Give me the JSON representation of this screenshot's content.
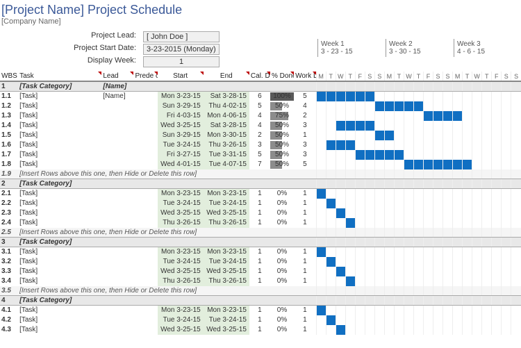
{
  "title": "[Project Name] Project Schedule",
  "subtitle": "[Company Name]",
  "meta": {
    "lead_label": "Project Lead:",
    "lead_value": "[ John Doe ]",
    "start_label": "Project Start Date:",
    "start_value": "3-23-2015 (Monday)",
    "week_label": "Display Week:",
    "week_value": "1"
  },
  "weeks": [
    {
      "label": "Week 1",
      "date": "3 - 23 - 15"
    },
    {
      "label": "Week 2",
      "date": "3 - 30 - 15"
    },
    {
      "label": "Week 3",
      "date": "4 - 6 - 15"
    }
  ],
  "headers": {
    "wbs": "WBS",
    "task": "Task",
    "lead": "Lead",
    "pred": "Prede cessor",
    "start": "Start",
    "end": "End",
    "cal": "Cal. Days",
    "pct": "% Done",
    "work": "Work Days"
  },
  "day_letters": [
    "M",
    "T",
    "W",
    "T",
    "F",
    "S",
    "S",
    "M",
    "T",
    "W",
    "T",
    "F",
    "S",
    "S",
    "M",
    "T",
    "W",
    "T",
    "F",
    "S",
    "S"
  ],
  "hint_text": "[Insert Rows above this one, then Hide or Delete this row]",
  "task_placeholder": "[Task]",
  "cat_placeholder": "[Task Category]",
  "name_placeholder": "[Name]",
  "colors": {
    "bar": "#106fc2",
    "date_bg": "#e2eedd",
    "cat_bg": "#e8e8e8"
  },
  "rows": [
    {
      "type": "cat",
      "wbs": "1",
      "task": "[Task Category]",
      "lead": "[Name]"
    },
    {
      "type": "task",
      "wbs": "1.1",
      "task": "[Task]",
      "lead": "[Name]",
      "start": "Mon 3-23-15",
      "end": "Sat 3-28-15",
      "cal": "6",
      "pct": 100,
      "work": "5",
      "bar": [
        0,
        6
      ]
    },
    {
      "type": "task",
      "wbs": "1.2",
      "task": "[Task]",
      "start": "Sun 3-29-15",
      "end": "Thu 4-02-15",
      "cal": "5",
      "pct": 50,
      "work": "4",
      "bar": [
        6,
        5
      ]
    },
    {
      "type": "task",
      "wbs": "1.3",
      "task": "[Task]",
      "start": "Fri 4-03-15",
      "end": "Mon 4-06-15",
      "cal": "4",
      "pct": 75,
      "work": "2",
      "bar": [
        11,
        4
      ]
    },
    {
      "type": "task",
      "wbs": "1.4",
      "task": "[Task]",
      "start": "Wed 3-25-15",
      "end": "Sat 3-28-15",
      "cal": "4",
      "pct": 50,
      "work": "3",
      "bar": [
        2,
        4
      ]
    },
    {
      "type": "task",
      "wbs": "1.5",
      "task": "[Task]",
      "start": "Sun 3-29-15",
      "end": "Mon 3-30-15",
      "cal": "2",
      "pct": 50,
      "work": "1",
      "bar": [
        6,
        2
      ]
    },
    {
      "type": "task",
      "wbs": "1.6",
      "task": "[Task]",
      "start": "Tue 3-24-15",
      "end": "Thu 3-26-15",
      "cal": "3",
      "pct": 50,
      "work": "3",
      "bar": [
        1,
        3
      ]
    },
    {
      "type": "task",
      "wbs": "1.7",
      "task": "[Task]",
      "start": "Fri 3-27-15",
      "end": "Tue 3-31-15",
      "cal": "5",
      "pct": 50,
      "work": "3",
      "bar": [
        4,
        5
      ]
    },
    {
      "type": "task",
      "wbs": "1.8",
      "task": "[Task]",
      "start": "Wed 4-01-15",
      "end": "Tue 4-07-15",
      "cal": "7",
      "pct": 50,
      "work": "5",
      "bar": [
        9,
        7
      ]
    },
    {
      "type": "hint",
      "wbs": "1.9"
    },
    {
      "type": "cat",
      "wbs": "2",
      "task": "[Task Category]"
    },
    {
      "type": "task",
      "wbs": "2.1",
      "task": "[Task]",
      "start": "Mon 3-23-15",
      "end": "Mon 3-23-15",
      "cal": "1",
      "pct": 0,
      "work": "1",
      "bar": [
        0,
        1
      ]
    },
    {
      "type": "task",
      "wbs": "2.2",
      "task": "[Task]",
      "start": "Tue 3-24-15",
      "end": "Tue 3-24-15",
      "cal": "1",
      "pct": 0,
      "work": "1",
      "bar": [
        1,
        1
      ]
    },
    {
      "type": "task",
      "wbs": "2.3",
      "task": "[Task]",
      "start": "Wed 3-25-15",
      "end": "Wed 3-25-15",
      "cal": "1",
      "pct": 0,
      "work": "1",
      "bar": [
        2,
        1
      ]
    },
    {
      "type": "task",
      "wbs": "2.4",
      "task": "[Task]",
      "start": "Thu 3-26-15",
      "end": "Thu 3-26-15",
      "cal": "1",
      "pct": 0,
      "work": "1",
      "bar": [
        3,
        1
      ]
    },
    {
      "type": "hint",
      "wbs": "2.5"
    },
    {
      "type": "cat",
      "wbs": "3",
      "task": "[Task Category]"
    },
    {
      "type": "task",
      "wbs": "3.1",
      "task": "[Task]",
      "start": "Mon 3-23-15",
      "end": "Mon 3-23-15",
      "cal": "1",
      "pct": 0,
      "work": "1",
      "bar": [
        0,
        1
      ]
    },
    {
      "type": "task",
      "wbs": "3.2",
      "task": "[Task]",
      "start": "Tue 3-24-15",
      "end": "Tue 3-24-15",
      "cal": "1",
      "pct": 0,
      "work": "1",
      "bar": [
        1,
        1
      ]
    },
    {
      "type": "task",
      "wbs": "3.3",
      "task": "[Task]",
      "start": "Wed 3-25-15",
      "end": "Wed 3-25-15",
      "cal": "1",
      "pct": 0,
      "work": "1",
      "bar": [
        2,
        1
      ]
    },
    {
      "type": "task",
      "wbs": "3.4",
      "task": "[Task]",
      "start": "Thu 3-26-15",
      "end": "Thu 3-26-15",
      "cal": "1",
      "pct": 0,
      "work": "1",
      "bar": [
        3,
        1
      ]
    },
    {
      "type": "hint",
      "wbs": "3.5"
    },
    {
      "type": "cat",
      "wbs": "4",
      "task": "[Task Category]"
    },
    {
      "type": "task",
      "wbs": "4.1",
      "task": "[Task]",
      "start": "Mon 3-23-15",
      "end": "Mon 3-23-15",
      "cal": "1",
      "pct": 0,
      "work": "1",
      "bar": [
        0,
        1
      ]
    },
    {
      "type": "task",
      "wbs": "4.2",
      "task": "[Task]",
      "start": "Tue 3-24-15",
      "end": "Tue 3-24-15",
      "cal": "1",
      "pct": 0,
      "work": "1",
      "bar": [
        1,
        1
      ]
    },
    {
      "type": "task",
      "wbs": "4.3",
      "task": "[Task]",
      "start": "Wed 3-25-15",
      "end": "Wed 3-25-15",
      "cal": "1",
      "pct": 0,
      "work": "1",
      "bar": [
        2,
        1
      ]
    }
  ]
}
